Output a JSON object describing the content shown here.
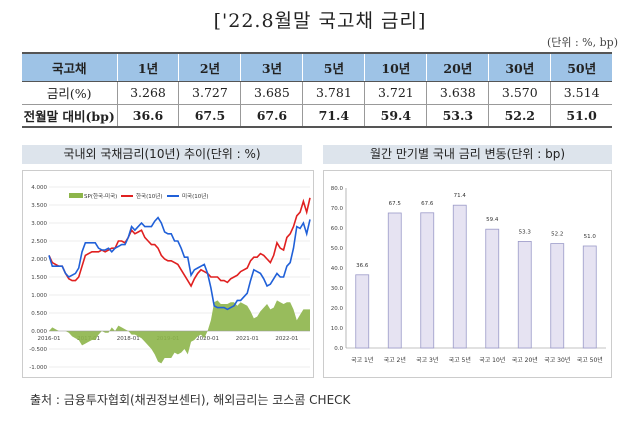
{
  "title": "['22.8월말 국고채 금리]",
  "unit": "(단위 : %, bp)",
  "table": {
    "headers": [
      "국고채",
      "1년",
      "2년",
      "3년",
      "5년",
      "10년",
      "20년",
      "30년",
      "50년"
    ],
    "rows": [
      [
        "금리(%)",
        "3.268",
        "3.727",
        "3.685",
        "3.781",
        "3.721",
        "3.638",
        "3.570",
        "3.514"
      ],
      [
        "전월말 대비(bp)",
        "36.6",
        "67.5",
        "67.6",
        "71.4",
        "59.4",
        "53.3",
        "52.2",
        "51.0"
      ]
    ]
  },
  "chart_data": [
    {
      "type": "line",
      "title": "국내외 국채금리(10년) 추이(단위 : %)",
      "ylim": [
        -1.0,
        4.0
      ],
      "yticks": [
        "4.000",
        "3.500",
        "3.000",
        "2.500",
        "2.000",
        "1.500",
        "1.000",
        "0.500",
        "0.000",
        "-0.500",
        "-1.000"
      ],
      "xticks": [
        "2016-01",
        "2017-01",
        "2018-01",
        "2019-01",
        "2020-01",
        "2021-01",
        "2022-01"
      ],
      "x_start": "2016-01",
      "x_end": "2022-08",
      "legend": "top",
      "series": [
        {
          "name": "SP(한국-미국)",
          "type": "area",
          "color": "#8db54a"
        },
        {
          "name": "한국(10년)",
          "color": "#e02020",
          "values": [
            2.1,
            1.9,
            1.85,
            1.8,
            1.8,
            1.6,
            1.45,
            1.4,
            1.4,
            1.5,
            1.8,
            2.1,
            2.15,
            2.2,
            2.2,
            2.2,
            2.25,
            2.2,
            2.25,
            2.3,
            2.3,
            2.5,
            2.5,
            2.45,
            2.6,
            2.8,
            2.7,
            2.75,
            2.8,
            2.6,
            2.5,
            2.4,
            2.4,
            2.3,
            2.1,
            2.0,
            1.95,
            1.95,
            1.9,
            1.85,
            1.7,
            1.55,
            1.4,
            1.25,
            1.45,
            1.6,
            1.7,
            1.65,
            1.6,
            1.5,
            1.5,
            1.5,
            1.4,
            1.4,
            1.35,
            1.45,
            1.5,
            1.55,
            1.65,
            1.7,
            1.75,
            1.95,
            2.05,
            2.05,
            2.15,
            2.1,
            2.0,
            1.9,
            2.1,
            2.45,
            2.3,
            2.25,
            2.6,
            2.7,
            2.9,
            3.2,
            3.3,
            3.6,
            3.3,
            3.7
          ]
        },
        {
          "name": "미국(10년)",
          "color": "#2060d8",
          "values": [
            2.1,
            1.8,
            1.8,
            1.8,
            1.8,
            1.6,
            1.5,
            1.55,
            1.6,
            1.75,
            2.2,
            2.45,
            2.45,
            2.45,
            2.45,
            2.3,
            2.25,
            2.25,
            2.3,
            2.2,
            2.3,
            2.35,
            2.4,
            2.4,
            2.6,
            2.9,
            2.8,
            2.9,
            3.0,
            2.9,
            2.9,
            2.9,
            3.05,
            3.15,
            3.0,
            2.75,
            2.7,
            2.7,
            2.5,
            2.5,
            2.3,
            2.05,
            2.05,
            1.55,
            1.7,
            1.75,
            1.8,
            1.85,
            1.6,
            1.2,
            0.7,
            0.65,
            0.65,
            0.65,
            0.6,
            0.65,
            0.7,
            0.85,
            0.85,
            0.95,
            1.05,
            1.4,
            1.7,
            1.65,
            1.6,
            1.45,
            1.25,
            1.3,
            1.45,
            1.6,
            1.5,
            1.5,
            1.8,
            1.9,
            2.3,
            2.9,
            2.85,
            3.0,
            2.7,
            3.1
          ]
        }
      ]
    },
    {
      "type": "bar",
      "title": "월간 만기별 국내 금리 변동(단위 : bp)",
      "categories": [
        "국고 1년",
        "국고 2년",
        "국고 3년",
        "국고 5년",
        "국고 10년",
        "국고 20년",
        "국고 30년",
        "국고 50년"
      ],
      "values": [
        36.6,
        67.5,
        67.6,
        71.4,
        59.4,
        53.3,
        52.2,
        51.0
      ],
      "labels": [
        "36.6",
        "67.5",
        "67.6",
        "71.4",
        "59.4",
        "53.3",
        "52.2",
        "51.0"
      ],
      "ylim": [
        0,
        80
      ],
      "yticks": [
        "80.0",
        "70.0",
        "60.0",
        "50.0",
        "40.0",
        "30.0",
        "20.0",
        "10.0",
        "0.0"
      ],
      "bar_color": "#e6e3f2"
    }
  ],
  "footer": "출처 : 금융투자협회(채권정보센터), 해외금리는 코스콤 CHECK"
}
